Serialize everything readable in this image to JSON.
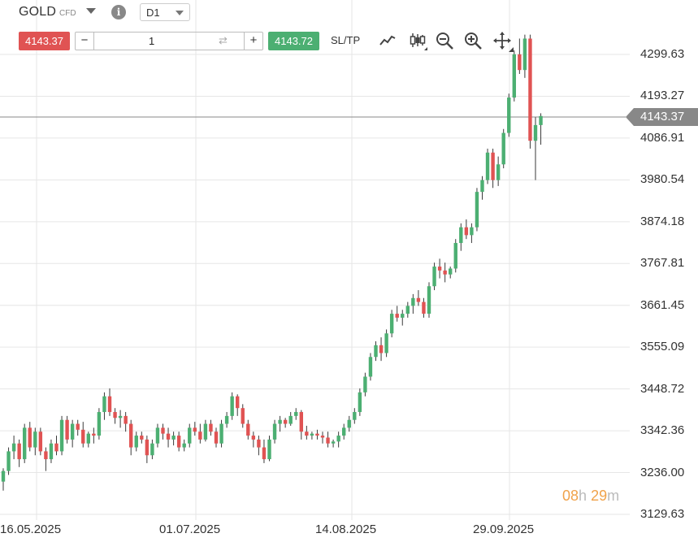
{
  "header": {
    "symbol": "GOLD",
    "symbol_type": "CFD",
    "info_glyph": "i",
    "timeframe": "D1",
    "sell_price": "4143.37",
    "buy_price": "4143.72",
    "quantity": "1",
    "minus": "−",
    "plus": "+",
    "swap_glyph": "⇄",
    "sltp_label": "SL/TP",
    "tools": [
      "line-chart-icon",
      "candlestick-icon",
      "zoom-out-icon",
      "zoom-in-icon",
      "move-icon"
    ]
  },
  "current_price_label": "4143.37",
  "timer": {
    "hours": "08",
    "h": "h",
    "minutes": "29",
    "m": "m"
  },
  "colors": {
    "up": "#4caf72",
    "down": "#e05353",
    "grid": "#e6e6e6",
    "price_line": "#888888"
  },
  "chart_data": {
    "type": "candlestick",
    "instrument": "GOLD",
    "timeframe": "D1",
    "y_ticks": [
      "4299.63",
      "4193.27",
      "4086.91",
      "3980.54",
      "3874.18",
      "3767.81",
      "3661.45",
      "3555.09",
      "3448.72",
      "3342.36",
      "3236.00",
      "3129.63"
    ],
    "x_ticks": [
      "16.05.2025",
      "01.07.2025",
      "14.08.2025",
      "29.09.2025"
    ],
    "ylim": [
      3129.63,
      4299.63
    ],
    "current_price": 4143.37,
    "candles": [
      [
        3213,
        3247,
        3190,
        3240
      ],
      [
        3240,
        3300,
        3230,
        3290
      ],
      [
        3290,
        3330,
        3270,
        3310
      ],
      [
        3310,
        3320,
        3250,
        3270
      ],
      [
        3270,
        3360,
        3260,
        3350
      ],
      [
        3350,
        3365,
        3290,
        3300
      ],
      [
        3300,
        3350,
        3280,
        3340
      ],
      [
        3340,
        3350,
        3280,
        3290
      ],
      [
        3290,
        3300,
        3240,
        3270
      ],
      [
        3270,
        3320,
        3260,
        3310
      ],
      [
        3310,
        3330,
        3280,
        3290
      ],
      [
        3290,
        3380,
        3280,
        3370
      ],
      [
        3370,
        3380,
        3310,
        3320
      ],
      [
        3320,
        3370,
        3300,
        3360
      ],
      [
        3360,
        3370,
        3330,
        3345
      ],
      [
        3345,
        3365,
        3300,
        3310
      ],
      [
        3310,
        3340,
        3300,
        3335
      ],
      [
        3335,
        3350,
        3310,
        3330
      ],
      [
        3330,
        3400,
        3320,
        3390
      ],
      [
        3390,
        3440,
        3370,
        3430
      ],
      [
        3430,
        3450,
        3380,
        3390
      ],
      [
        3390,
        3400,
        3360,
        3375
      ],
      [
        3375,
        3395,
        3350,
        3380
      ],
      [
        3380,
        3390,
        3340,
        3360
      ],
      [
        3360,
        3370,
        3280,
        3300
      ],
      [
        3300,
        3340,
        3290,
        3330
      ],
      [
        3330,
        3340,
        3310,
        3320
      ],
      [
        3320,
        3330,
        3260,
        3280
      ],
      [
        3280,
        3320,
        3270,
        3310
      ],
      [
        3310,
        3360,
        3300,
        3350
      ],
      [
        3350,
        3360,
        3320,
        3335
      ],
      [
        3335,
        3350,
        3300,
        3320
      ],
      [
        3320,
        3340,
        3305,
        3330
      ],
      [
        3330,
        3340,
        3290,
        3300
      ],
      [
        3300,
        3320,
        3290,
        3310
      ],
      [
        3310,
        3360,
        3300,
        3350
      ],
      [
        3350,
        3365,
        3330,
        3340
      ],
      [
        3340,
        3360,
        3310,
        3320
      ],
      [
        3320,
        3370,
        3315,
        3360
      ],
      [
        3360,
        3370,
        3330,
        3340
      ],
      [
        3340,
        3350,
        3300,
        3310
      ],
      [
        3310,
        3370,
        3300,
        3360
      ],
      [
        3360,
        3390,
        3350,
        3380
      ],
      [
        3380,
        3440,
        3370,
        3430
      ],
      [
        3430,
        3435,
        3380,
        3400
      ],
      [
        3400,
        3410,
        3350,
        3360
      ],
      [
        3360,
        3370,
        3320,
        3330
      ],
      [
        3330,
        3340,
        3300,
        3320
      ],
      [
        3320,
        3330,
        3280,
        3300
      ],
      [
        3300,
        3320,
        3260,
        3270
      ],
      [
        3270,
        3330,
        3265,
        3320
      ],
      [
        3320,
        3370,
        3310,
        3360
      ],
      [
        3360,
        3380,
        3340,
        3370
      ],
      [
        3370,
        3375,
        3350,
        3360
      ],
      [
        3360,
        3390,
        3355,
        3380
      ],
      [
        3380,
        3400,
        3370,
        3390
      ],
      [
        3390,
        3395,
        3320,
        3340
      ],
      [
        3340,
        3355,
        3320,
        3330
      ],
      [
        3330,
        3340,
        3320,
        3335
      ],
      [
        3335,
        3345,
        3320,
        3330
      ],
      [
        3330,
        3340,
        3310,
        3325
      ],
      [
        3325,
        3340,
        3300,
        3310
      ],
      [
        3310,
        3320,
        3300,
        3315
      ],
      [
        3315,
        3340,
        3300,
        3330
      ],
      [
        3330,
        3360,
        3320,
        3350
      ],
      [
        3350,
        3380,
        3340,
        3370
      ],
      [
        3370,
        3400,
        3360,
        3390
      ],
      [
        3390,
        3450,
        3380,
        3440
      ],
      [
        3440,
        3490,
        3430,
        3480
      ],
      [
        3480,
        3540,
        3470,
        3530
      ],
      [
        3530,
        3570,
        3520,
        3560
      ],
      [
        3560,
        3580,
        3520,
        3540
      ],
      [
        3540,
        3600,
        3530,
        3590
      ],
      [
        3590,
        3650,
        3580,
        3640
      ],
      [
        3640,
        3660,
        3620,
        3630
      ],
      [
        3630,
        3650,
        3610,
        3640
      ],
      [
        3640,
        3670,
        3630,
        3660
      ],
      [
        3660,
        3690,
        3640,
        3680
      ],
      [
        3680,
        3700,
        3660,
        3670
      ],
      [
        3670,
        3680,
        3630,
        3640
      ],
      [
        3640,
        3720,
        3630,
        3710
      ],
      [
        3710,
        3770,
        3700,
        3760
      ],
      [
        3760,
        3780,
        3730,
        3750
      ],
      [
        3750,
        3770,
        3720,
        3740
      ],
      [
        3740,
        3760,
        3730,
        3755
      ],
      [
        3755,
        3830,
        3745,
        3820
      ],
      [
        3820,
        3870,
        3800,
        3860
      ],
      [
        3860,
        3880,
        3830,
        3840
      ],
      [
        3840,
        3870,
        3820,
        3860
      ],
      [
        3860,
        3960,
        3850,
        3950
      ],
      [
        3950,
        3990,
        3930,
        3980
      ],
      [
        3980,
        4060,
        3970,
        4050
      ],
      [
        4050,
        4060,
        3960,
        3980
      ],
      [
        3980,
        4040,
        3965,
        4020
      ],
      [
        4020,
        4110,
        4010,
        4100
      ],
      [
        4100,
        4200,
        4090,
        4190
      ],
      [
        4190,
        4310,
        4180,
        4300
      ],
      [
        4300,
        4340,
        4250,
        4260
      ],
      [
        4260,
        4350,
        4240,
        4340
      ],
      [
        4340,
        4350,
        4060,
        4080
      ],
      [
        4080,
        4140,
        3980,
        4120
      ],
      [
        4120,
        4150,
        4070,
        4143
      ]
    ]
  }
}
